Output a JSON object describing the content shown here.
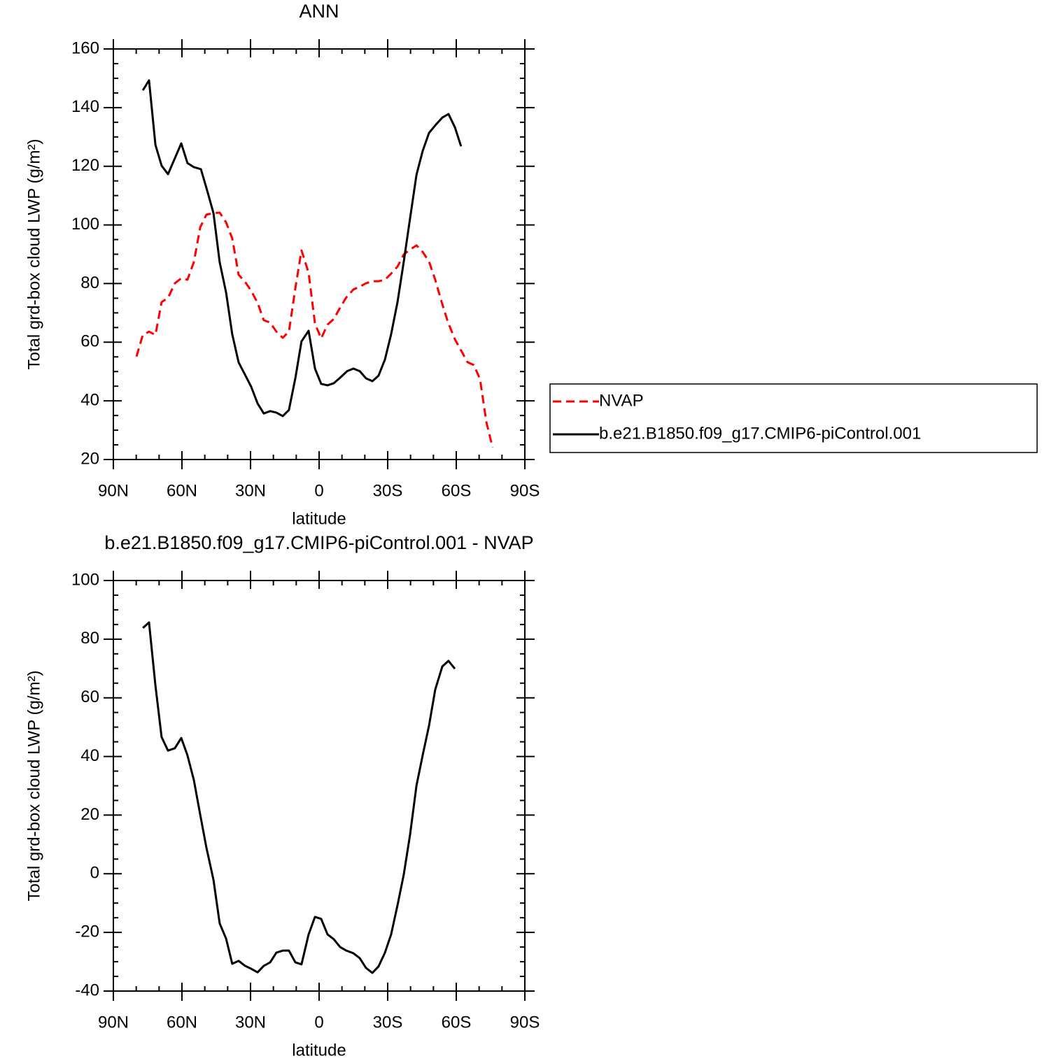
{
  "chart_data": [
    {
      "type": "line",
      "title": "ANN",
      "xlabel": "latitude",
      "ylabel": "Total grd-box cloud LWP (g/m²)",
      "xlim": [
        90,
        -90
      ],
      "xticks": [
        {
          "value": 90,
          "label": "90N"
        },
        {
          "value": 60,
          "label": "60N"
        },
        {
          "value": 30,
          "label": "30N"
        },
        0,
        {
          "value": -30,
          "label": "30S"
        },
        {
          "value": -60,
          "label": "60S"
        },
        {
          "value": -90,
          "label": "90S"
        }
      ],
      "ylim": [
        20,
        160
      ],
      "yticks": [
        20,
        40,
        60,
        80,
        100,
        120,
        140,
        160
      ],
      "legend": "right",
      "series": [
        {
          "name": "NVAP",
          "color": "#ff0000",
          "linestyle": "dashed",
          "x": [
            79.9,
            77.1,
            74.4,
            71.6,
            68.9,
            66.1,
            63.1,
            60.3,
            57.6,
            54.8,
            52.0,
            49.3,
            46.2,
            43.5,
            40.7,
            38.0,
            35.2,
            32.4,
            29.7,
            26.9,
            24.2,
            21.4,
            18.7,
            15.9,
            13.2,
            10.4,
            7.7,
            4.6,
            1.8,
            -0.9,
            -3.7,
            -6.4,
            -9.2,
            -11.9,
            -15.0,
            -17.8,
            -20.5,
            -23.3,
            -26.0,
            -28.8,
            -31.5,
            -34.3,
            -37.0,
            -39.8,
            -42.6,
            -45.3,
            -48.1,
            -50.8,
            -53.6,
            -56.3,
            -59.4,
            -62.1,
            -64.9,
            -67.7,
            -70.4,
            -73.2,
            -75.9
          ],
          "values": [
            55.1,
            62.5,
            63.6,
            62.5,
            73.7,
            75.1,
            80.1,
            81.8,
            81.3,
            87.3,
            99.2,
            103.5,
            104.0,
            104.2,
            100.9,
            95.4,
            83.0,
            80.6,
            77.5,
            73.4,
            67.5,
            66.7,
            63.6,
            61.5,
            63.6,
            78.4,
            91.3,
            83.7,
            66.3,
            61.3,
            66.0,
            67.9,
            71.8,
            75.3,
            78.0,
            78.9,
            80.1,
            80.8,
            80.8,
            81.3,
            83.4,
            85.8,
            89.9,
            91.6,
            93.0,
            90.8,
            87.5,
            81.3,
            73.7,
            67.0,
            61.0,
            57.2,
            53.2,
            52.2,
            47.4,
            32.6,
            24.1
          ]
        },
        {
          "name": "b.e21.B1850.f09_g17.CMIP6-piControl.001",
          "color": "#000000",
          "linestyle": "solid",
          "x": [
            77.1,
            74.4,
            71.6,
            68.9,
            66.1,
            60.3,
            57.6,
            54.8,
            51.7,
            49.0,
            46.2,
            43.5,
            40.7,
            38.0,
            35.2,
            32.4,
            29.7,
            26.9,
            24.2,
            21.4,
            18.7,
            15.9,
            13.2,
            10.4,
            7.7,
            4.6,
            1.8,
            -0.9,
            -3.7,
            -6.4,
            -9.2,
            -12.2,
            -15.0,
            -17.8,
            -20.5,
            -23.3,
            -26.0,
            -28.8,
            -31.5,
            -34.3,
            -37.0,
            -39.8,
            -42.6,
            -45.3,
            -48.1,
            -51.1,
            -53.9,
            -56.6,
            -59.4,
            -62.1
          ],
          "values": [
            145.9,
            149.3,
            127.3,
            120.2,
            117.3,
            127.8,
            121.1,
            119.7,
            119.0,
            111.8,
            104.0,
            87.3,
            77.0,
            62.7,
            53.1,
            48.9,
            44.8,
            39.1,
            35.7,
            36.5,
            36.0,
            34.8,
            36.9,
            47.7,
            60.3,
            63.9,
            51.0,
            45.8,
            45.3,
            46.0,
            47.9,
            50.1,
            51.0,
            50.1,
            47.7,
            46.7,
            48.6,
            54.1,
            62.7,
            73.7,
            87.3,
            102.3,
            117.1,
            125.2,
            131.4,
            134.2,
            136.6,
            137.8,
            133.3,
            126.8
          ]
        }
      ]
    },
    {
      "type": "line",
      "title": "b.e21.B1850.f09_g17.CMIP6-piControl.001  - NVAP",
      "xlabel": "latitude",
      "ylabel": "Total grd-box cloud LWP (g/m²)",
      "xlim": [
        90,
        -90
      ],
      "xticks": [
        {
          "value": 90,
          "label": "90N"
        },
        {
          "value": 60,
          "label": "60N"
        },
        {
          "value": 30,
          "label": "30N"
        },
        0,
        {
          "value": -30,
          "label": "30S"
        },
        {
          "value": -60,
          "label": "60S"
        },
        {
          "value": -90,
          "label": "90S"
        }
      ],
      "ylim": [
        -40,
        100
      ],
      "yticks": [
        -40,
        -20,
        0,
        20,
        40,
        60,
        80,
        100
      ],
      "series": [
        {
          "color": "#000000",
          "linestyle": "solid",
          "x": [
            77.1,
            74.4,
            71.6,
            68.9,
            66.1,
            63.1,
            60.3,
            57.6,
            54.8,
            52.0,
            49.3,
            46.2,
            43.5,
            40.7,
            38.0,
            35.2,
            32.4,
            29.7,
            26.9,
            24.2,
            21.4,
            18.7,
            15.9,
            13.2,
            10.4,
            7.7,
            4.6,
            1.8,
            -0.9,
            -3.7,
            -6.4,
            -9.2,
            -11.9,
            -15.0,
            -17.8,
            -20.5,
            -23.3,
            -26.0,
            -28.8,
            -31.5,
            -34.3,
            -37.0,
            -39.8,
            -42.6,
            -45.3,
            -48.1,
            -50.8,
            -53.9,
            -56.6,
            -59.4
          ],
          "values": [
            83.8,
            85.7,
            64.2,
            46.6,
            42.0,
            42.8,
            46.3,
            40.4,
            32.0,
            20.1,
            8.9,
            -2.1,
            -16.9,
            -22.1,
            -30.7,
            -29.7,
            -31.4,
            -32.4,
            -33.6,
            -31.4,
            -30.2,
            -26.9,
            -26.2,
            -26.2,
            -30.2,
            -30.9,
            -20.7,
            -14.7,
            -15.4,
            -20.7,
            -22.3,
            -25.0,
            -26.2,
            -27.1,
            -28.8,
            -32.1,
            -33.8,
            -31.6,
            -26.9,
            -20.7,
            -10.7,
            -0.4,
            13.4,
            30.1,
            40.4,
            50.6,
            62.8,
            70.7,
            72.6,
            69.9
          ]
        }
      ]
    }
  ]
}
